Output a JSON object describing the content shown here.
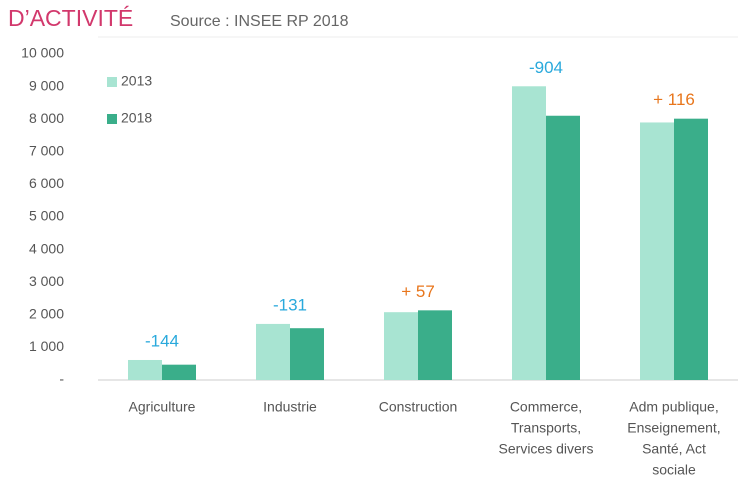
{
  "chart_data": {
    "type": "bar",
    "title": "D’ACTIVITÉ",
    "subtitle": "Source : INSEE RP 2018",
    "categories": [
      [
        "Agriculture"
      ],
      [
        "Industrie"
      ],
      [
        "Construction"
      ],
      [
        "Commerce,",
        "Transports,",
        "Services divers"
      ],
      [
        "Adm publique,",
        "Enseignement,",
        "Santé, Act",
        "sociale"
      ]
    ],
    "series": [
      {
        "name": "2013",
        "color": "#a8e4d2",
        "values": [
          614,
          1720,
          2080,
          9010,
          7900
        ]
      },
      {
        "name": "2018",
        "color": "#3aae8a",
        "values": [
          470,
          1589,
          2137,
          8106,
          8016
        ]
      }
    ],
    "annotations": [
      {
        "text": "-144",
        "color": "#29a9dc"
      },
      {
        "text": "-131",
        "color": "#29a9dc"
      },
      {
        "text": "+ 57",
        "color": "#e8761c"
      },
      {
        "text": "-904",
        "color": "#29a9dc"
      },
      {
        "text": "+ 116",
        "color": "#e8761c"
      }
    ],
    "ylim": [
      0,
      10000
    ],
    "yticks": [
      {
        "value": 0,
        "label": "-"
      },
      {
        "value": 1000,
        "label": "1 000"
      },
      {
        "value": 2000,
        "label": "2 000"
      },
      {
        "value": 3000,
        "label": "3 000"
      },
      {
        "value": 4000,
        "label": "4 000"
      },
      {
        "value": 5000,
        "label": "5 000"
      },
      {
        "value": 6000,
        "label": "6 000"
      },
      {
        "value": 7000,
        "label": "7 000"
      },
      {
        "value": 8000,
        "label": "8 000"
      },
      {
        "value": 9000,
        "label": "9 000"
      },
      {
        "value": 10000,
        "label": "10 000"
      }
    ],
    "grid": false,
    "legend": "top-left"
  }
}
